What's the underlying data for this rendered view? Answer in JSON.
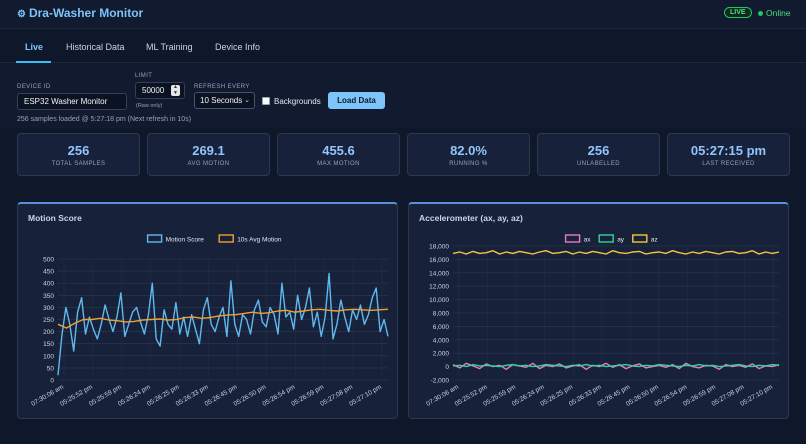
{
  "header": {
    "title": "Dra-Washer Monitor",
    "live_badge": "LIVE",
    "status": "Online",
    "status_color": "#22c55e"
  },
  "tabs": [
    {
      "label": "Live",
      "active": true
    },
    {
      "label": "Historical Data",
      "active": false
    },
    {
      "label": "ML Training",
      "active": false
    },
    {
      "label": "Device Info",
      "active": false
    }
  ],
  "controls": {
    "device_id_label": "DEVICE ID",
    "device_id_value": "ESP32 Washer Monitor",
    "limit_label": "LIMIT",
    "limit_value": "50000",
    "limit_hint": "(Raw only)",
    "refresh_label": "REFRESH EVERY",
    "refresh_value": "10 Seconds",
    "backgrounds_label": "Backgrounds",
    "load_button": "Load Data"
  },
  "status_line": "256 samples loaded @ 5:27:18 pm (Next refresh in 10s)",
  "stats": [
    {
      "value": "256",
      "label": "TOTAL SAMPLES"
    },
    {
      "value": "269.1",
      "label": "AVG MOTION"
    },
    {
      "value": "455.6",
      "label": "MAX MOTION"
    },
    {
      "value": "82.0%",
      "label": "RUNNING %"
    },
    {
      "value": "256",
      "label": "UNLABELLED"
    },
    {
      "value": "05:27:15 pm",
      "label": "LAST RECEIVED"
    }
  ],
  "chart_data": [
    {
      "type": "line",
      "title": "Motion Score",
      "x_tick_labels": [
        "07:30:06 am",
        "05:25:52 pm",
        "05:25:59 pm",
        "05:26:24 pm",
        "05:26:25 pm",
        "05:26:33 pm",
        "05:26:45 pm",
        "05:26:50 pm",
        "05:26:54 pm",
        "05:26:59 pm",
        "05:27:08 pm",
        "05:27:10 pm"
      ],
      "ylim": [
        0,
        500
      ],
      "y_ticks": [
        0,
        50,
        100,
        150,
        200,
        250,
        300,
        350,
        400,
        450,
        500
      ],
      "legend_position": "top-center",
      "grid": true,
      "series": [
        {
          "name": "Motion Score",
          "color": "#60b8f0",
          "values": [
            20,
            185,
            300,
            230,
            120,
            280,
            340,
            190,
            260,
            210,
            170,
            230,
            310,
            250,
            200,
            260,
            360,
            180,
            230,
            280,
            300,
            240,
            190,
            270,
            400,
            170,
            140,
            290,
            230,
            210,
            320,
            190,
            260,
            180,
            270,
            210,
            150,
            290,
            340,
            230,
            200,
            260,
            300,
            180,
            410,
            230,
            180,
            270,
            250,
            190,
            290,
            330,
            240,
            220,
            300,
            270,
            190,
            400,
            260,
            280,
            210,
            350,
            250,
            300,
            380,
            220,
            280,
            180,
            260,
            440,
            170,
            230,
            330,
            260,
            200,
            290,
            250,
            310,
            230,
            270,
            340,
            380,
            200,
            250,
            180
          ]
        },
        {
          "name": "10s Avg Motion",
          "color": "#f0a030",
          "values": [
            230,
            215,
            235,
            250,
            250,
            255,
            248,
            245,
            240,
            242,
            248,
            250,
            252,
            248,
            250,
            258,
            260,
            255,
            258,
            265,
            268,
            270,
            275,
            280,
            275,
            278,
            285,
            288,
            280,
            285,
            290,
            292,
            288,
            285,
            290,
            292,
            290,
            288,
            290,
            292
          ]
        }
      ]
    },
    {
      "type": "line",
      "title": "Accelerometer (ax, ay, az)",
      "x_tick_labels": [
        "07:30:06 am",
        "05:25:52 pm",
        "05:25:59 pm",
        "05:26:24 pm",
        "05:26:25 pm",
        "05:26:33 pm",
        "05:26:45 pm",
        "05:26:50 pm",
        "05:26:54 pm",
        "05:26:59 pm",
        "05:27:08 pm",
        "05:27:10 pm"
      ],
      "ylim": [
        -2000,
        18000
      ],
      "y_ticks": [
        -2000,
        0,
        2000,
        4000,
        6000,
        8000,
        10000,
        12000,
        14000,
        16000,
        18000
      ],
      "legend_position": "top-center",
      "grid": true,
      "series": [
        {
          "name": "ax",
          "color": "#e879c8",
          "values": [
            300,
            -200,
            500,
            100,
            -300,
            400,
            0,
            200,
            -400,
            300,
            100,
            -100,
            500,
            -300,
            200,
            0,
            400,
            -200,
            100,
            300,
            -400,
            200,
            0,
            500,
            -100,
            300,
            -300,
            100,
            400,
            -200,
            0,
            200,
            -100,
            300,
            -300,
            500,
            0,
            -200,
            200,
            100,
            -400,
            300,
            0,
            200,
            -100,
            400,
            -300,
            100,
            0,
            300
          ]
        },
        {
          "name": "ay",
          "color": "#34d399",
          "values": [
            100,
            200,
            0,
            300,
            100,
            200,
            100,
            0,
            200,
            300,
            100,
            200,
            0,
            100,
            300,
            200,
            100,
            0,
            200,
            100,
            300,
            100,
            200,
            0,
            100,
            200,
            300,
            100,
            0,
            200,
            100,
            300,
            200,
            100,
            0,
            200,
            100,
            300,
            100,
            200,
            0,
            100,
            200,
            300,
            100,
            0,
            200,
            100,
            300,
            200
          ]
        },
        {
          "name": "az",
          "color": "#f5c542",
          "values": [
            16900,
            17100,
            16800,
            17200,
            16900,
            17000,
            17300,
            16800,
            17100,
            16900,
            17200,
            17000,
            16800,
            17100,
            17300,
            16900,
            17000,
            17200,
            16800,
            17100,
            16900,
            17200,
            17000,
            16800,
            17300,
            17000,
            16900,
            17100,
            17200,
            16800,
            17000,
            17100,
            16900,
            17300,
            17000,
            16800,
            17100,
            16900,
            17200,
            17000,
            16800,
            17100,
            17200,
            16900,
            17000,
            17300,
            16800,
            17100,
            16900,
            17100
          ]
        }
      ]
    }
  ]
}
